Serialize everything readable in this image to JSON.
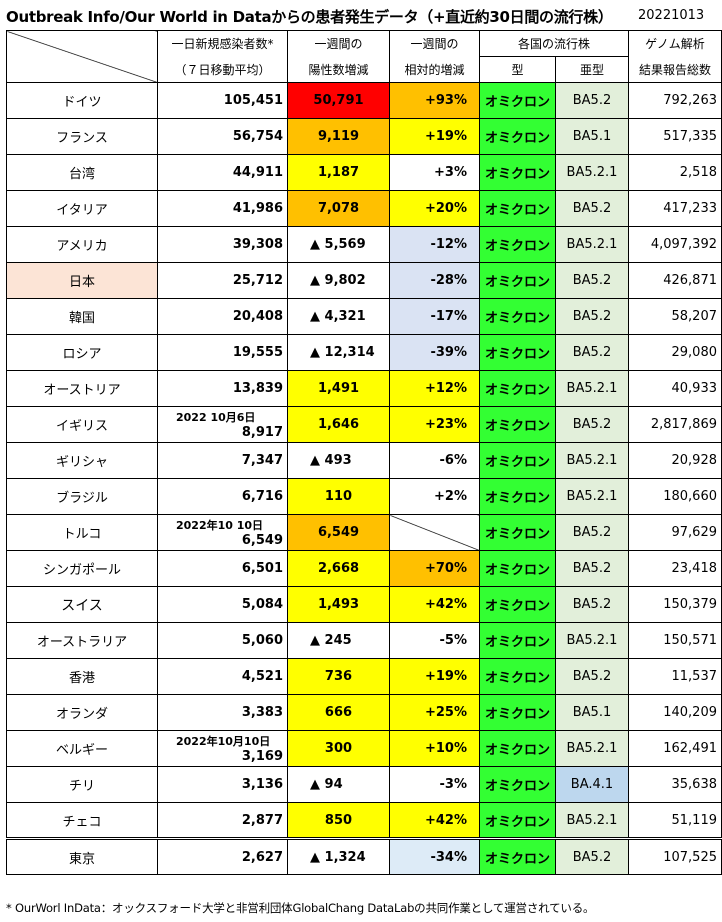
{
  "title": "Outbreak Info/Our World in Dataからの患者発生データ（+直近約30日間の流行株）",
  "date": "20221013",
  "headers": {
    "c1a": "一日新規感染者数*",
    "c1b": "（７日移動平均）",
    "c2a": "一週間の",
    "c2b": "陽性数増減",
    "c3a": "一週間の",
    "c3b": "相対的増減",
    "c4a": "各国の流行株",
    "c4b": "型",
    "c4c": "亜型",
    "c5a": "ゲノム解析",
    "c5b": "結果報告総数"
  },
  "colors": {
    "red": "#ff0000",
    "orange": "#ffc000",
    "yellow": "#ffff00",
    "lavender": "#dae3f3",
    "lightblue": "#ddebf7",
    "green": "#33ff33",
    "subtype": "#e2efda",
    "subtype_blue": "#bdd7ee",
    "japan": "#fce4d6"
  },
  "rows": [
    {
      "country": "ドイツ",
      "cases": "105,451",
      "note": "",
      "delta": "50,791",
      "dc": "red",
      "rel": "+93%",
      "rc": "orange",
      "type": "オミクロン",
      "sub": "BA5.2",
      "sc": "subtype",
      "genome": "792,263"
    },
    {
      "country": "フランス",
      "cases": "56,754",
      "note": "",
      "delta": "9,119",
      "dc": "orange",
      "rel": "+19%",
      "rc": "yellow",
      "type": "オミクロン",
      "sub": "BA5.1",
      "sc": "subtype",
      "genome": "517,335"
    },
    {
      "country": "台湾",
      "cases": "44,911",
      "note": "",
      "delta": "1,187",
      "dc": "yellow",
      "rel": "+3%",
      "rc": "",
      "type": "オミクロン",
      "sub": "BA5.2.1",
      "sc": "subtype",
      "genome": "2,518"
    },
    {
      "country": "イタリア",
      "cases": "41,986",
      "note": "",
      "delta": "7,078",
      "dc": "orange",
      "rel": "+20%",
      "rc": "yellow",
      "type": "オミクロン",
      "sub": "BA5.2",
      "sc": "subtype",
      "genome": "417,233"
    },
    {
      "country": "アメリカ",
      "cases": "39,308",
      "note": "",
      "delta": "▲ 5,569",
      "dc": "",
      "rel": "-12%",
      "rc": "lavender",
      "type": "オミクロン",
      "sub": "BA5.2.1",
      "sc": "subtype",
      "genome": "4,097,392"
    },
    {
      "country": "日本",
      "cases": "25,712",
      "note": "",
      "delta": "▲ 9,802",
      "dc": "",
      "rel": "-28%",
      "rc": "lavender",
      "type": "オミクロン",
      "sub": "BA5.2",
      "sc": "subtype",
      "genome": "426,871",
      "japan": true
    },
    {
      "country": "韓国",
      "cases": "20,408",
      "note": "",
      "delta": "▲ 4,321",
      "dc": "",
      "rel": "-17%",
      "rc": "lavender",
      "type": "オミクロン",
      "sub": "BA5.2",
      "sc": "subtype",
      "genome": "58,207"
    },
    {
      "country": "ロシア",
      "cases": "19,555",
      "note": "",
      "delta": "▲ 12,314",
      "dc": "",
      "rel": "-39%",
      "rc": "lavender",
      "type": "オミクロン",
      "sub": "BA5.2",
      "sc": "subtype",
      "genome": "29,080"
    },
    {
      "country": "オーストリア",
      "cases": "13,839",
      "note": "",
      "delta": "1,491",
      "dc": "yellow",
      "rel": "+12%",
      "rc": "yellow",
      "type": "オミクロン",
      "sub": "BA5.2.1",
      "sc": "subtype",
      "genome": "40,933"
    },
    {
      "country": "イギリス",
      "cases": "8,917",
      "note": "2022 10月6日",
      "delta": "1,646",
      "dc": "yellow",
      "rel": "+23%",
      "rc": "yellow",
      "type": "オミクロン",
      "sub": "BA5.2",
      "sc": "subtype",
      "genome": "2,817,869"
    },
    {
      "country": "ギリシャ",
      "cases": "7,347",
      "note": "",
      "delta": "▲ 493",
      "dc": "",
      "rel": "-6%",
      "rc": "",
      "type": "オミクロン",
      "sub": "BA5.2.1",
      "sc": "subtype",
      "genome": "20,928"
    },
    {
      "country": "ブラジル",
      "cases": "6,716",
      "note": "",
      "delta": "110",
      "dc": "yellow",
      "rel": "+2%",
      "rc": "",
      "type": "オミクロン",
      "sub": "BA5.2.1",
      "sc": "subtype",
      "genome": "180,660"
    },
    {
      "country": "トルコ",
      "cases": "6,549",
      "note": "2022年10 10日",
      "delta": "6,549",
      "dc": "orange",
      "rel": "",
      "rc": "diag",
      "type": "オミクロン",
      "sub": "BA5.2",
      "sc": "subtype",
      "genome": "97,629"
    },
    {
      "country": "シンガポール",
      "cases": "6,501",
      "note": "",
      "delta": "2,668",
      "dc": "yellow",
      "rel": "+70%",
      "rc": "orange",
      "type": "オミクロン",
      "sub": "BA5.2",
      "sc": "subtype",
      "genome": "23,418"
    },
    {
      "country": "スイス",
      "cases": "5,084",
      "note": "",
      "delta": "1,493",
      "dc": "yellow",
      "rel": "+42%",
      "rc": "yellow",
      "type": "オミクロン",
      "sub": "BA5.2",
      "sc": "subtype",
      "genome": "150,379",
      "small": true
    },
    {
      "country": "オーストラリア",
      "cases": "5,060",
      "note": "",
      "delta": "▲ 245",
      "dc": "",
      "rel": "-5%",
      "rc": "",
      "type": "オミクロン",
      "sub": "BA5.2.1",
      "sc": "subtype",
      "genome": "150,571"
    },
    {
      "country": "香港",
      "cases": "4,521",
      "note": "",
      "delta": "736",
      "dc": "yellow",
      "rel": "+19%",
      "rc": "yellow",
      "type": "オミクロン",
      "sub": "BA5.2",
      "sc": "subtype",
      "genome": "11,537"
    },
    {
      "country": "オランダ",
      "cases": "3,383",
      "note": "",
      "delta": "666",
      "dc": "yellow",
      "rel": "+25%",
      "rc": "yellow",
      "type": "オミクロン",
      "sub": "BA5.1",
      "sc": "subtype",
      "genome": "140,209"
    },
    {
      "country": "ベルギー",
      "cases": "3,169",
      "note": "2022年10月10日",
      "delta": "300",
      "dc": "yellow",
      "rel": "+10%",
      "rc": "yellow",
      "type": "オミクロン",
      "sub": "BA5.2.1",
      "sc": "subtype",
      "genome": "162,491"
    },
    {
      "country": "チリ",
      "cases": "3,136",
      "note": "",
      "delta": "▲ 94",
      "dc": "",
      "rel": "-3%",
      "rc": "",
      "type": "オミクロン",
      "sub": "BA.4.1",
      "sc": "subtype_blue",
      "genome": "35,638"
    },
    {
      "country": "チェコ",
      "cases": "2,877",
      "note": "",
      "delta": "850",
      "dc": "yellow",
      "rel": "+42%",
      "rc": "yellow",
      "type": "オミクロン",
      "sub": "BA5.2.1",
      "sc": "subtype",
      "genome": "51,119"
    },
    {
      "country": "東京",
      "cases": "2,627",
      "note": "",
      "delta": "▲ 1,324",
      "dc": "",
      "rel": "-34%",
      "rc": "lightblue",
      "type": "オミクロン",
      "sub": "BA5.2",
      "sc": "subtype",
      "genome": "107,525"
    }
  ],
  "footer": "* OurWorl InData：オックスフォード大学と非営利団体GlobalChang DataLabの共同作業として運営されている。"
}
